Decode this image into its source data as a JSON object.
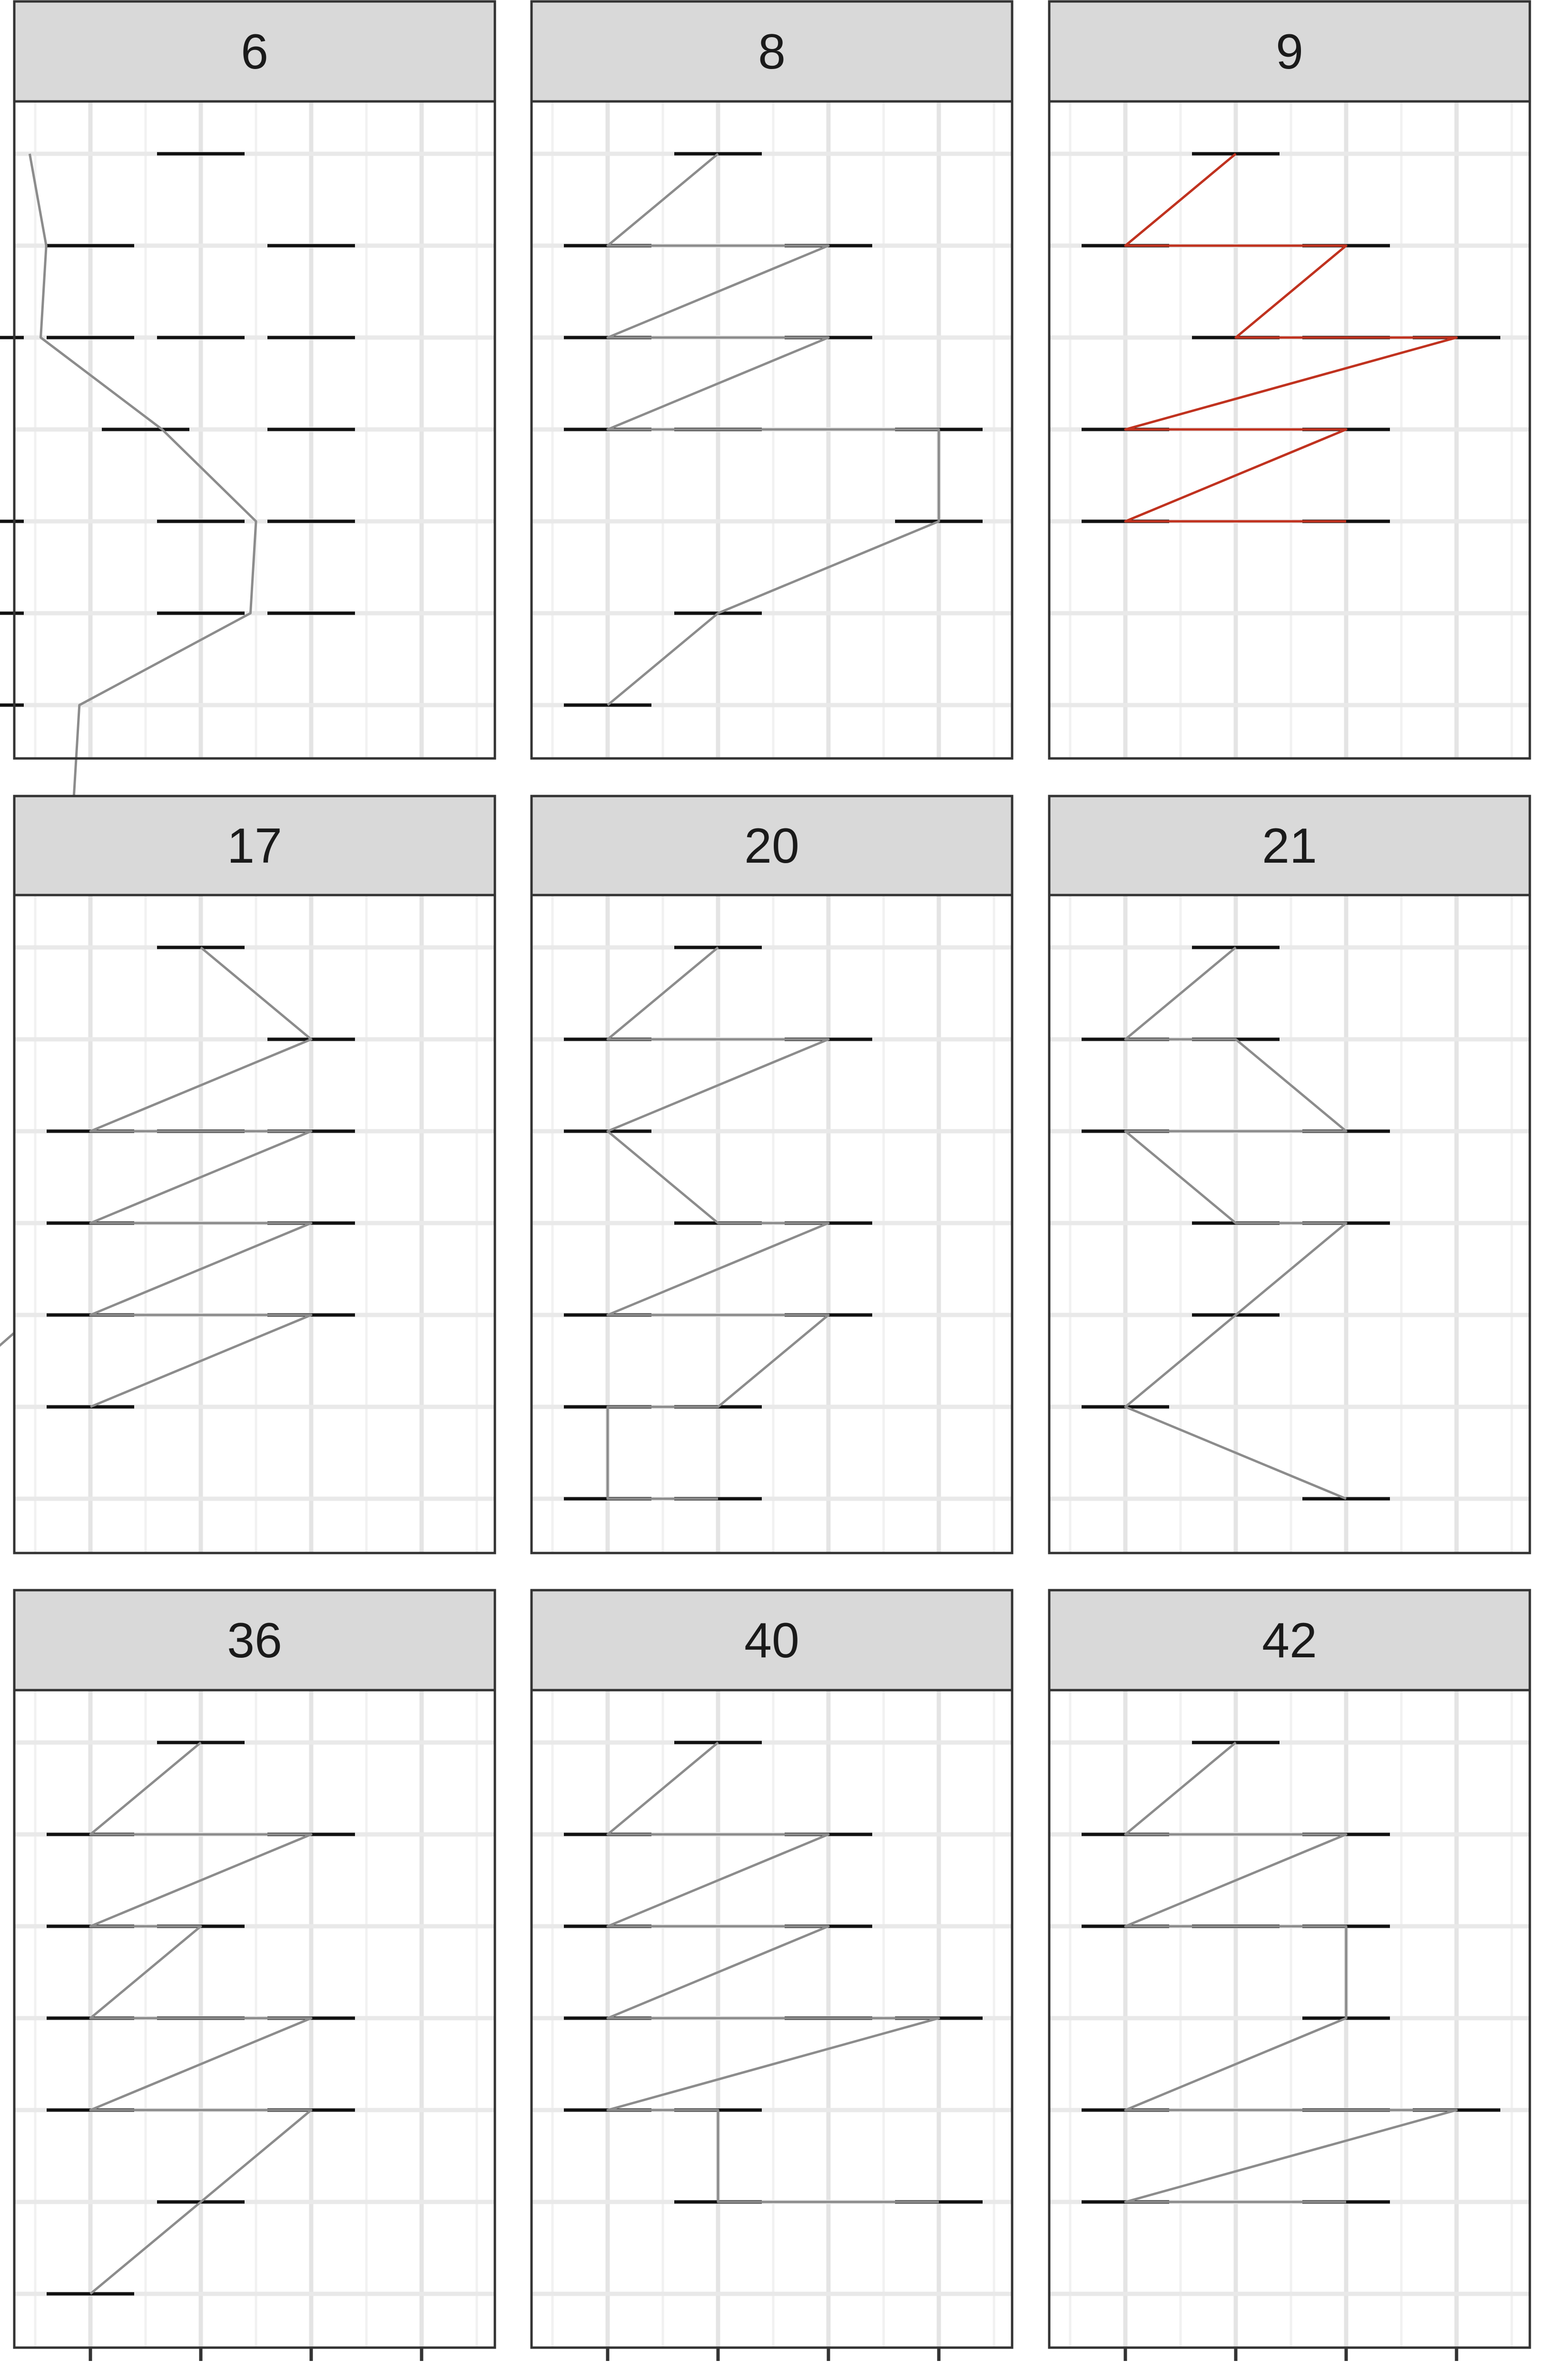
{
  "chart_data": [
    {
      "type": "line",
      "panel": "6",
      "bars": [
        [
          -1.5,
          0
        ],
        [
          -3.5,
          1
        ],
        [
          0.5,
          1
        ],
        [
          -5.5,
          2
        ],
        [
          -3.5,
          2
        ],
        [
          -1.5,
          2
        ],
        [
          0.5,
          2
        ],
        [
          -2.5,
          3
        ],
        [
          0.5,
          3
        ],
        [
          -5.5,
          4
        ],
        [
          -1.5,
          4
        ],
        [
          0.5,
          4
        ],
        [
          -5.5,
          5
        ],
        [
          -1.5,
          5
        ],
        [
          0.5,
          5
        ],
        [
          -5.5,
          6
        ]
      ],
      "path": [
        [
          -4.6,
          0
        ],
        [
          -4.3,
          1
        ],
        [
          -4.4,
          2
        ],
        [
          -2.2,
          3
        ],
        [
          -0.5,
          4
        ],
        [
          -0.6,
          5
        ],
        [
          -3.7,
          6
        ],
        [
          -3.8,
          7
        ],
        [
          -4.3,
          8
        ],
        [
          -2.4,
          9
        ],
        [
          -2.3,
          10
        ],
        [
          -1.7,
          11
        ],
        [
          -3.3,
          12
        ],
        [
          -5.2,
          13
        ],
        [
          -5.3,
          14
        ]
      ],
      "path_rows": [
        0,
        1,
        2,
        3,
        4,
        5,
        1,
        2,
        4,
        3,
        2,
        1,
        0,
        2,
        4,
        5,
        6
      ]
    },
    {
      "type": "line",
      "panel": "8",
      "bars": [
        [
          -1.5,
          0
        ],
        [
          -3.5,
          1
        ],
        [
          0.5,
          1
        ],
        [
          -3.5,
          2
        ],
        [
          0.5,
          2
        ],
        [
          -3.5,
          3
        ],
        [
          -1.5,
          3
        ],
        [
          2.5,
          3
        ],
        [
          2.5,
          4
        ],
        [
          -1.5,
          5
        ],
        [
          -3.5,
          6
        ]
      ],
      "path": [
        [
          -1.5,
          0
        ],
        [
          -3.5,
          1
        ],
        [
          0.5,
          1
        ],
        [
          -3.5,
          2
        ],
        [
          0.5,
          2
        ],
        [
          -3.5,
          3
        ],
        [
          -1.5,
          3
        ],
        [
          2.5,
          3
        ],
        [
          2.5,
          4
        ],
        [
          -1.5,
          5
        ],
        [
          -3.5,
          6
        ]
      ]
    },
    {
      "type": "line",
      "panel": "9",
      "bars": [
        [
          -1.5,
          0
        ],
        [
          -3.5,
          1
        ],
        [
          0.5,
          1
        ],
        [
          -1.5,
          2
        ],
        [
          0.5,
          2
        ],
        [
          2.5,
          2
        ],
        [
          -3.5,
          3
        ],
        [
          0.5,
          3
        ],
        [
          -3.5,
          4
        ],
        [
          0.5,
          4
        ]
      ],
      "path": [
        [
          -1.5,
          0
        ],
        [
          -3.5,
          1
        ],
        [
          0.5,
          1
        ],
        [
          -1.5,
          2
        ],
        [
          0.5,
          2
        ],
        [
          2.5,
          2
        ],
        [
          -3.5,
          3
        ],
        [
          0.5,
          3
        ],
        [
          -3.5,
          4
        ],
        [
          0.5,
          4
        ]
      ]
    },
    {
      "type": "line",
      "panel": "17",
      "bars": [
        [
          -1.5,
          0
        ],
        [
          0.5,
          1
        ],
        [
          -3.5,
          2
        ],
        [
          -1.5,
          2
        ],
        [
          0.5,
          2
        ],
        [
          -3.5,
          3
        ],
        [
          0.5,
          3
        ],
        [
          -3.5,
          4
        ],
        [
          0.5,
          4
        ],
        [
          -3.5,
          5
        ]
      ],
      "path": [
        [
          -1.5,
          0
        ],
        [
          0.5,
          1
        ],
        [
          -3.5,
          2
        ],
        [
          -1.5,
          2
        ],
        [
          0.5,
          2
        ],
        [
          -3.5,
          3
        ],
        [
          0.5,
          3
        ],
        [
          -3.5,
          4
        ],
        [
          0.5,
          4
        ],
        [
          -3.5,
          5
        ]
      ]
    },
    {
      "type": "line",
      "panel": "20",
      "bars": [
        [
          -1.5,
          0
        ],
        [
          -3.5,
          1
        ],
        [
          0.5,
          1
        ],
        [
          -3.5,
          2
        ],
        [
          -1.5,
          3
        ],
        [
          0.5,
          3
        ],
        [
          -3.5,
          4
        ],
        [
          0.5,
          4
        ],
        [
          -1.5,
          5
        ],
        [
          -3.5,
          5
        ],
        [
          -3.5,
          6
        ],
        [
          -1.5,
          6
        ]
      ],
      "path": [
        [
          -1.5,
          0
        ],
        [
          -3.5,
          1
        ],
        [
          0.5,
          1
        ],
        [
          -3.5,
          2
        ],
        [
          -1.5,
          3
        ],
        [
          0.5,
          3
        ],
        [
          -3.5,
          4
        ],
        [
          0.5,
          4
        ],
        [
          -1.5,
          5
        ],
        [
          -3.5,
          5
        ],
        [
          -3.5,
          6
        ],
        [
          -1.5,
          6
        ]
      ]
    },
    {
      "type": "line",
      "panel": "21",
      "bars": [
        [
          -1.5,
          0
        ],
        [
          -3.5,
          1
        ],
        [
          -1.5,
          1
        ],
        [
          0.5,
          2
        ],
        [
          -3.5,
          2
        ],
        [
          -1.5,
          3
        ],
        [
          0.5,
          3
        ],
        [
          -1.5,
          4
        ],
        [
          -3.5,
          5
        ],
        [
          0.5,
          6
        ]
      ],
      "path": [
        [
          -1.5,
          0
        ],
        [
          -3.5,
          1
        ],
        [
          -1.5,
          1
        ],
        [
          0.5,
          2
        ],
        [
          -3.5,
          2
        ],
        [
          -1.5,
          3
        ],
        [
          0.5,
          3
        ],
        [
          -1.5,
          4
        ],
        [
          -3.5,
          5
        ],
        [
          0.5,
          6
        ]
      ]
    },
    {
      "type": "line",
      "panel": "36",
      "bars": [
        [
          -1.5,
          0
        ],
        [
          -3.5,
          1
        ],
        [
          0.5,
          1
        ],
        [
          -3.5,
          2
        ],
        [
          -1.5,
          2
        ],
        [
          -3.5,
          3
        ],
        [
          -1.5,
          3
        ],
        [
          0.5,
          3
        ],
        [
          -3.5,
          4
        ],
        [
          0.5,
          4
        ],
        [
          -1.5,
          5
        ],
        [
          -3.5,
          6
        ]
      ],
      "path": [
        [
          -1.5,
          0
        ],
        [
          -3.5,
          1
        ],
        [
          0.5,
          1
        ],
        [
          -3.5,
          2
        ],
        [
          -1.5,
          2
        ],
        [
          -3.5,
          3
        ],
        [
          -1.5,
          3
        ],
        [
          0.5,
          3
        ],
        [
          -3.5,
          4
        ],
        [
          0.5,
          4
        ],
        [
          -1.5,
          5
        ],
        [
          -3.5,
          6
        ]
      ]
    },
    {
      "type": "line",
      "panel": "40",
      "bars": [
        [
          -1.5,
          0
        ],
        [
          -3.5,
          1
        ],
        [
          0.5,
          1
        ],
        [
          -3.5,
          2
        ],
        [
          0.5,
          2
        ],
        [
          -3.5,
          3
        ],
        [
          0.5,
          3
        ],
        [
          2.5,
          3
        ],
        [
          -3.5,
          4
        ],
        [
          -1.5,
          4
        ],
        [
          -1.5,
          5
        ],
        [
          2.5,
          5
        ]
      ],
      "path": [
        [
          -1.5,
          0
        ],
        [
          -3.5,
          1
        ],
        [
          0.5,
          1
        ],
        [
          -3.5,
          2
        ],
        [
          0.5,
          2
        ],
        [
          -3.5,
          3
        ],
        [
          0.5,
          3
        ],
        [
          2.5,
          3
        ],
        [
          -3.5,
          4
        ],
        [
          -1.5,
          4
        ],
        [
          -1.5,
          5
        ],
        [
          2.5,
          5
        ]
      ]
    },
    {
      "type": "line",
      "panel": "42",
      "bars": [
        [
          -1.5,
          0
        ],
        [
          -3.5,
          1
        ],
        [
          0.5,
          1
        ],
        [
          -3.5,
          2
        ],
        [
          -1.5,
          2
        ],
        [
          0.5,
          2
        ],
        [
          0.5,
          3
        ],
        [
          -3.5,
          4
        ],
        [
          0.5,
          4
        ],
        [
          2.5,
          4
        ],
        [
          -3.5,
          5
        ],
        [
          0.5,
          5
        ]
      ],
      "path": [
        [
          -1.5,
          0
        ],
        [
          -3.5,
          1
        ],
        [
          0.5,
          1
        ],
        [
          -3.5,
          2
        ],
        [
          -1.5,
          2
        ],
        [
          0.5,
          2
        ],
        [
          0.5,
          3
        ],
        [
          -3.5,
          4
        ],
        [
          0.5,
          4
        ],
        [
          2.5,
          4
        ],
        [
          -3.5,
          5
        ],
        [
          0.5,
          5
        ]
      ]
    }
  ]
}
